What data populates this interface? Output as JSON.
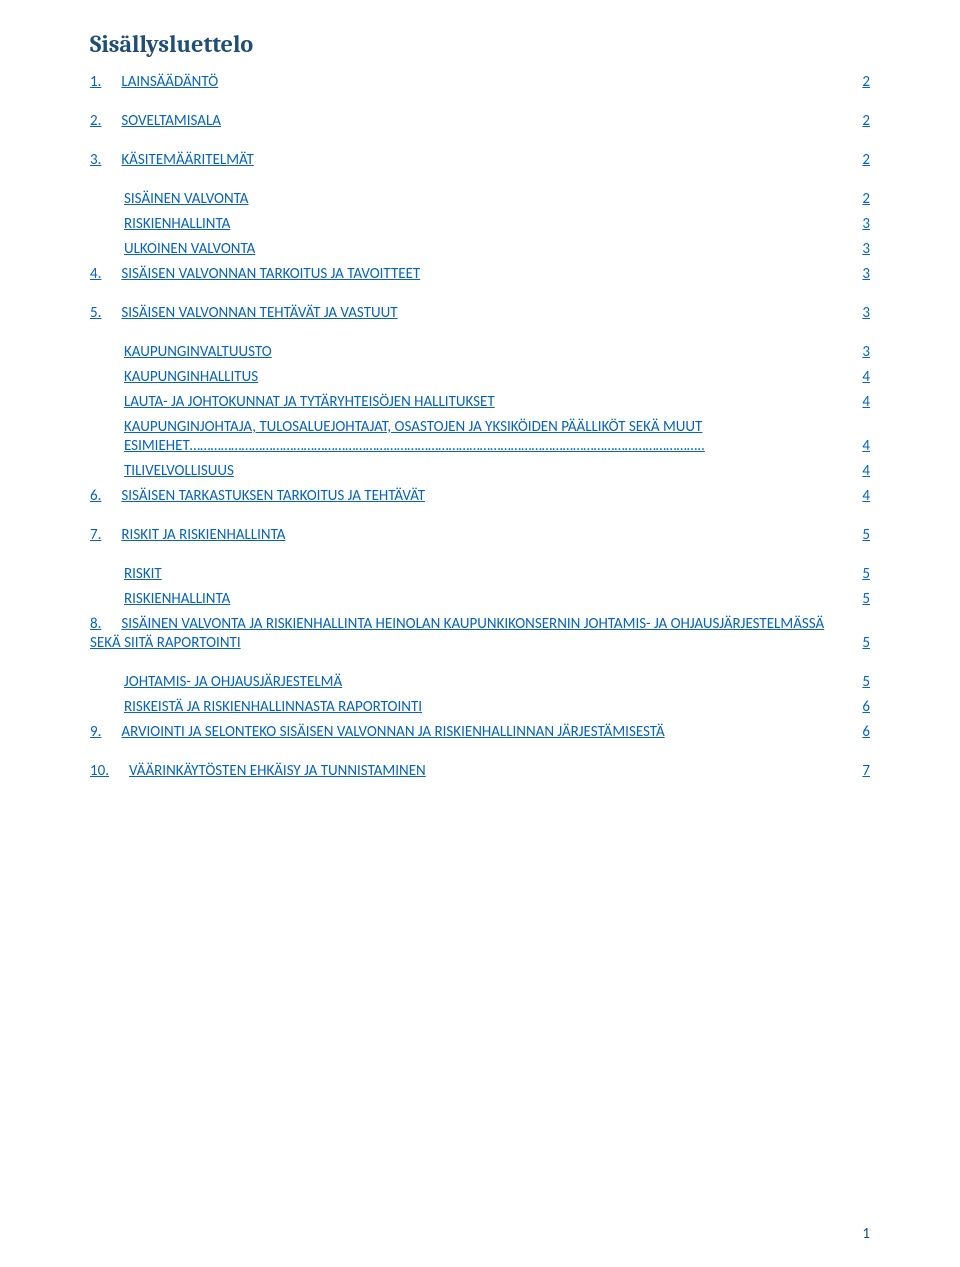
{
  "title_color": "#1f4e79",
  "link_color": "#0563c1",
  "background_color": "#ffffff",
  "toc_title": "Sisällysluettelo",
  "page_number": "1",
  "entries": [
    {
      "level": 1,
      "num": "1.",
      "text": "LAINSÄÄDÄNTÖ",
      "page": "2",
      "gap_after": true
    },
    {
      "level": 1,
      "num": "2.",
      "text": "SOVELTAMISALA",
      "page": "2",
      "gap_after": true
    },
    {
      "level": 1,
      "num": "3.",
      "text": "KÄSITEMÄÄRITELMÄT",
      "page": "2",
      "gap_after": true
    },
    {
      "level": 2,
      "text": "SISÄINEN VALVONTA",
      "page": "2"
    },
    {
      "level": 2,
      "text": "RISKIENHALLINTA",
      "page": "3"
    },
    {
      "level": 2,
      "text": "ULKOINEN VALVONTA",
      "page": "3"
    },
    {
      "level": 1,
      "num": "4.",
      "text": "SISÄISEN VALVONNAN TARKOITUS JA TAVOITTEET",
      "page": "3",
      "gap_after": true
    },
    {
      "level": 1,
      "num": "5.",
      "text": "SISÄISEN VALVONNAN TEHTÄVÄT JA VASTUUT",
      "page": "3",
      "gap_after": true
    },
    {
      "level": 2,
      "text": "KAUPUNGINVALTUUSTO",
      "page": "3"
    },
    {
      "level": 2,
      "text": "KAUPUNGINHALLITUS",
      "page": "4"
    },
    {
      "level": 2,
      "text": "LAUTA- JA JOHTOKUNNAT JA TYTÄRYHTEISÖJEN HALLITUKSET",
      "page": "4"
    },
    {
      "level": 2,
      "text": "KAUPUNGINJOHTAJA, TULOSALUEJOHTAJAT, OSASTOJEN JA     YKSIKÖIDEN PÄÄLLIKÖT SEKÄ MUUT ESIMIEHET…………………………………………………………………………………………………………………………………..",
      "page": "4"
    },
    {
      "level": 2,
      "text": "TILIVELVOLLISUUS",
      "page": "4"
    },
    {
      "level": 1,
      "num": "6.",
      "text": "SISÄISEN TARKASTUKSEN TARKOITUS JA TEHTÄVÄT",
      "page": "4",
      "gap_after": true
    },
    {
      "level": 1,
      "num": "7.",
      "text": "RISKIT JA RISKIENHALLINTA",
      "page": "5",
      "gap_after": true
    },
    {
      "level": 2,
      "text": "RISKIT",
      "page": "5"
    },
    {
      "level": 2,
      "text": "RISKIENHALLINTA",
      "page": "5"
    },
    {
      "level": 1,
      "num": "8.",
      "text": "SISÄINEN VALVONTA JA RISKIENHALLINTA HEINOLAN KAUPUNKIKONSERNIN JOHTAMIS- JA     OHJAUSJÄRJESTELMÄSSÄ SEKÄ SIITÄ RAPORTOINTI",
      "page": "5",
      "gap_after": true,
      "wrap": true
    },
    {
      "level": 2,
      "text": "JOHTAMIS- JA OHJAUSJÄRJESTELMÄ",
      "page": "5"
    },
    {
      "level": 2,
      "text": "RISKEISTÄ JA RISKIENHALLINNASTA RAPORTOINTI",
      "page": "6"
    },
    {
      "level": 1,
      "num": "9.",
      "text": "ARVIOINTI JA SELONTEKO SISÄISEN VALVONNAN JA RISKIENHALLINNAN JÄRJESTÄMISESTÄ",
      "page": "6",
      "gap_after": true
    },
    {
      "level": 1,
      "num": "10.",
      "text": "VÄÄRINKÄYTÖSTEN EHKÄISY JA TUNNISTAMINEN",
      "page": "7"
    }
  ]
}
